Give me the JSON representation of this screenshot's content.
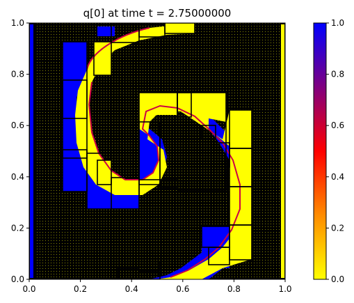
{
  "chart_data": {
    "type": "heatmap",
    "title": "q[0] at time t =     2.75000000",
    "xlabel": "",
    "ylabel": "",
    "xlim": [
      0.0,
      1.0
    ],
    "ylim": [
      0.0,
      1.0
    ],
    "x_ticks": [
      "0.0",
      "0.2",
      "0.4",
      "0.6",
      "0.8",
      "1.0"
    ],
    "y_ticks": [
      "0.0",
      "0.2",
      "0.4",
      "0.6",
      "0.8",
      "1.0"
    ],
    "colorbar": {
      "range": [
        0.0,
        1.0
      ],
      "ticks": [
        "0.0",
        "0.2",
        "0.4",
        "0.6",
        "0.8",
        "1.0"
      ],
      "colors": [
        "#ffff00",
        "#ff8c00",
        "#ff0000",
        "#800080",
        "#0000ff"
      ]
    },
    "field_colors": {
      "low": "#ffff00",
      "high": "#0000ff",
      "background": "#000000",
      "grid_lines": "#000000"
    },
    "description_values": {
      "q_inside_spiral_arm": 1.0,
      "q_outside": 0.0
    },
    "grid": true
  }
}
